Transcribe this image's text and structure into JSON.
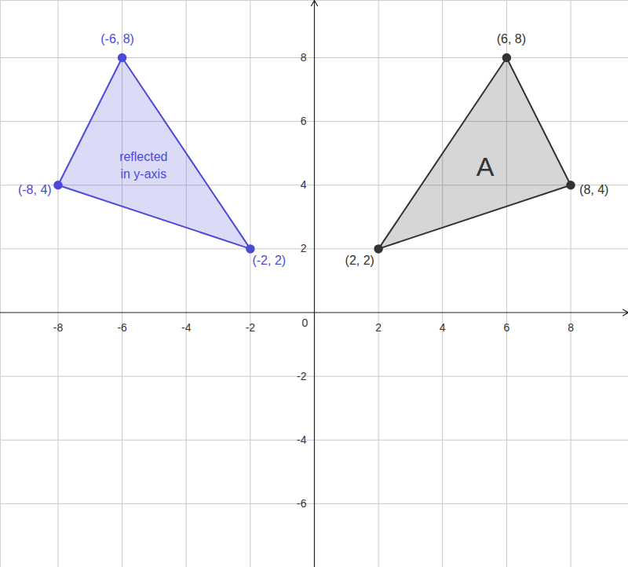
{
  "chart_data": {
    "type": "polygon",
    "xlim": [
      -9.8,
      9.8
    ],
    "ylim": [
      -8,
      9.8
    ],
    "xticks": [
      -8,
      -6,
      -4,
      -2,
      0,
      2,
      4,
      6,
      8
    ],
    "yticks": [
      -6,
      -4,
      -2,
      2,
      4,
      6,
      8
    ],
    "grid": true,
    "series": [
      {
        "name": "reflected\nin y-axis",
        "color": "#4a4ad6",
        "vertices": [
          [
            -6,
            8
          ],
          [
            -8,
            4
          ],
          [
            -2,
            2
          ]
        ],
        "vertex_labels": [
          "(-6, 8)",
          "(-8, 4)",
          "(-2, 2)"
        ]
      },
      {
        "name": "A",
        "color": "#333333",
        "vertices": [
          [
            6,
            8
          ],
          [
            8,
            4
          ],
          [
            2,
            2
          ]
        ],
        "vertex_labels": [
          "(6, 8)",
          "(8, 4)",
          "(2, 2)"
        ]
      }
    ]
  }
}
